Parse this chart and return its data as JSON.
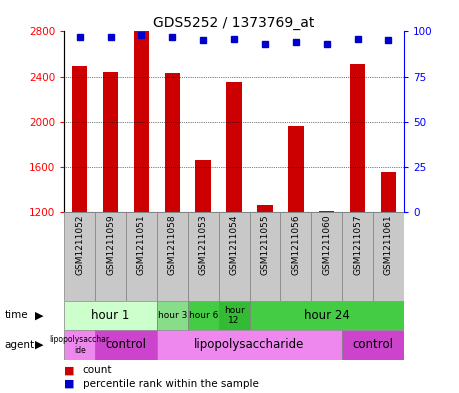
{
  "title": "GDS5252 / 1373769_at",
  "samples": [
    "GSM1211052",
    "GSM1211059",
    "GSM1211051",
    "GSM1211058",
    "GSM1211053",
    "GSM1211054",
    "GSM1211055",
    "GSM1211056",
    "GSM1211060",
    "GSM1211057",
    "GSM1211061"
  ],
  "counts": [
    2490,
    2440,
    2800,
    2430,
    1660,
    2350,
    1265,
    1960,
    1210,
    2510,
    1560
  ],
  "percentiles": [
    97,
    97,
    98,
    97,
    95,
    96,
    93,
    94,
    93,
    96,
    95
  ],
  "ylim_left": [
    1200,
    2800
  ],
  "ylim_right": [
    0,
    100
  ],
  "yticks_left": [
    1200,
    1600,
    2000,
    2400,
    2800
  ],
  "yticks_right": [
    0,
    25,
    50,
    75,
    100
  ],
  "bar_color": "#cc0000",
  "dot_color": "#0000cc",
  "bar_width": 0.5,
  "time_groups": [
    {
      "label": "hour 1",
      "start": 0,
      "end": 3,
      "color": "#ccffcc"
    },
    {
      "label": "hour 3",
      "start": 3,
      "end": 4,
      "color": "#88dd88"
    },
    {
      "label": "hour 6",
      "start": 4,
      "end": 5,
      "color": "#44cc44"
    },
    {
      "label": "hour\n12",
      "start": 5,
      "end": 6,
      "color": "#33bb33"
    },
    {
      "label": "hour 24",
      "start": 6,
      "end": 11,
      "color": "#44cc44"
    }
  ],
  "agent_groups": [
    {
      "label": "lipopolysacchar\nide",
      "start": 0,
      "end": 1,
      "color": "#ee88ee"
    },
    {
      "label": "control",
      "start": 1,
      "end": 3,
      "color": "#cc44cc"
    },
    {
      "label": "lipopolysaccharide",
      "start": 3,
      "end": 9,
      "color": "#ee88ee"
    },
    {
      "label": "control",
      "start": 9,
      "end": 11,
      "color": "#cc44cc"
    }
  ],
  "fig_width": 4.59,
  "fig_height": 3.93,
  "dpi": 100
}
